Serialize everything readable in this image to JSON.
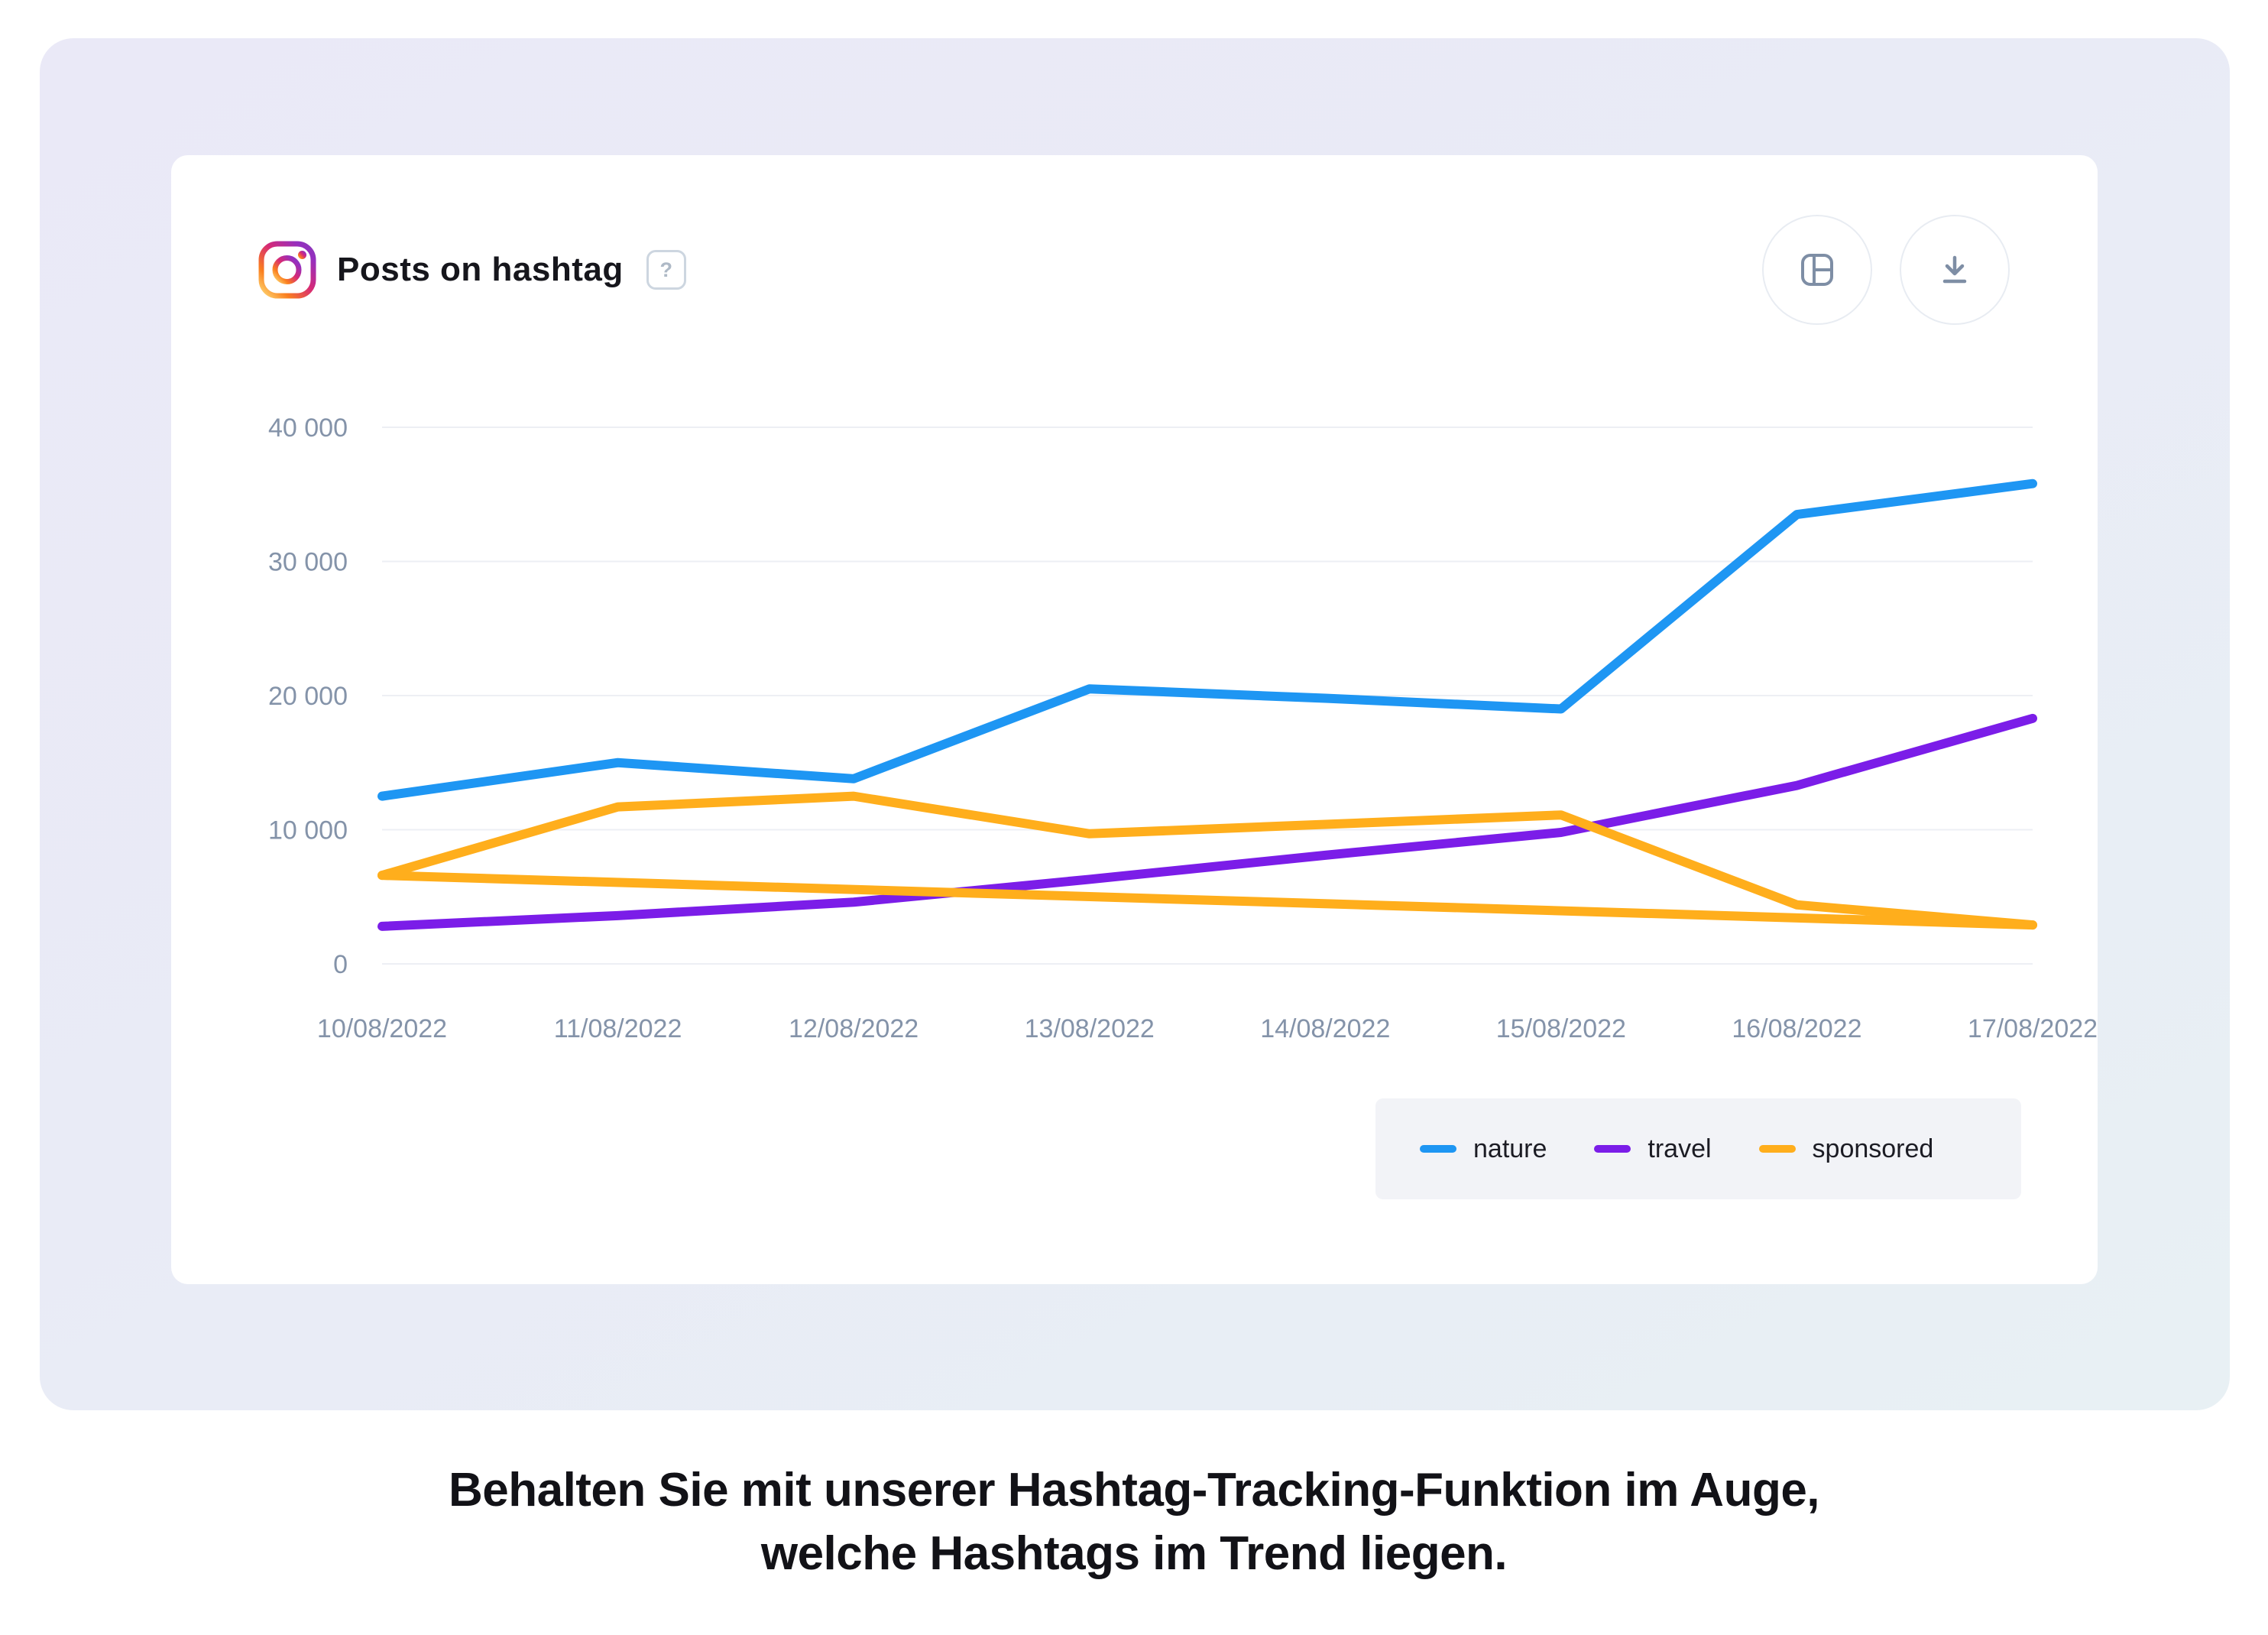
{
  "header": {
    "title": "Posts on hashtag",
    "help_label": "?",
    "source_icon": "instagram"
  },
  "toolbar": {
    "panel_button": "panel-layout",
    "download_button": "download"
  },
  "chart_data": {
    "type": "line",
    "title": "Posts on hashtag",
    "categories": [
      "10/08/2022",
      "11/08/2022",
      "12/08/2022",
      "13/08/2022",
      "14/08/2022",
      "15/08/2022",
      "16/08/2022",
      "17/08/2022"
    ],
    "series": [
      {
        "name": "travel",
        "color": "#7B1DE8",
        "values": [
          2800,
          3600,
          4600,
          6300,
          8100,
          9800,
          13300,
          18300
        ]
      },
      {
        "name": "sponsored",
        "color": "#FFAE1C",
        "values": [
          6600,
          11700,
          12500,
          9700,
          10400,
          11100,
          4400,
          2900
        ]
      },
      {
        "name": "nature",
        "color": "#1E96F3",
        "values": [
          12500,
          15000,
          13800,
          20500,
          19800,
          19000,
          33500,
          35800
        ]
      }
    ],
    "legend_order": [
      "nature",
      "travel",
      "sponsored"
    ],
    "extra_segments": [
      {
        "series": "sponsored",
        "from_index": 0,
        "to_index": 7,
        "note": "straight segment joining first and last sponsored points, as drawn in original graphic"
      }
    ],
    "yticks": [
      {
        "label": "0",
        "value": 0
      },
      {
        "label": "10 000",
        "value": 10000
      },
      {
        "label": "20 000",
        "value": 20000
      },
      {
        "label": "30 000",
        "value": 30000
      },
      {
        "label": "40 000",
        "value": 40000
      }
    ],
    "ylim": [
      0,
      40000
    ],
    "grid": true,
    "legend_position": "bottom-right"
  },
  "caption": {
    "line1": "Behalten Sie mit unserer Hashtag-Tracking-Funktion im Auge,",
    "line2": "welche Hashtags im Trend liegen."
  },
  "colors": {
    "axis_text": "#8493A9",
    "gridline": "#EDEFF4",
    "card": "#FFFFFF",
    "legend_bg": "#F2F3F7",
    "icon_stroke": "#7E8EA5"
  }
}
